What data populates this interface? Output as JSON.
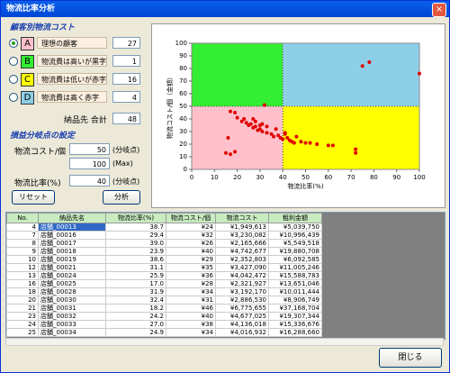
{
  "window": {
    "title": "物流比率分析",
    "close": "閉じる"
  },
  "customer_group": {
    "title": "顧客別物流コスト",
    "rows": [
      {
        "key": "A",
        "label": "理想の顧客",
        "count": 27
      },
      {
        "key": "B",
        "label": "物流費は高いが黒字",
        "count": 1
      },
      {
        "key": "C",
        "label": "物流費は低いが赤字",
        "count": 16
      },
      {
        "key": "D",
        "label": "物流費は高く赤字",
        "count": 4
      }
    ],
    "total_label": "納品先 合計",
    "total": 48
  },
  "breakeven": {
    "title": "損益分岐点の設定",
    "cost_label": "物流コスト/個",
    "cost": 50,
    "cost_note": "(分岐点)",
    "max": 100,
    "max_note": "(Max)",
    "ratio_label": "物流比率(%)",
    "ratio": 40,
    "ratio_note": "(分岐点)",
    "reset": "リセット",
    "analyze": "分析"
  },
  "chart_data": {
    "type": "scatter",
    "xlabel": "物流比率(%)",
    "ylabel": "物流コスト/個（金額）",
    "xlim": [
      0,
      100
    ],
    "ylim": [
      0,
      100
    ],
    "xticks": [
      0,
      10,
      20,
      30,
      40,
      50,
      60,
      70,
      80,
      90,
      100
    ],
    "yticks": [
      0,
      10,
      20,
      30,
      40,
      50,
      60,
      70,
      80,
      90,
      100
    ],
    "quadrant_colors": [
      "#ffc0cb",
      "#33ee33",
      "#ffff00",
      "#8ecfe8"
    ],
    "color": "#e00000",
    "x": [
      17,
      19,
      20,
      22,
      23,
      24,
      25,
      26,
      27,
      28,
      29,
      30,
      31,
      33,
      35,
      36,
      38,
      39,
      27,
      28,
      30,
      31,
      33,
      37,
      16,
      15,
      17,
      19,
      32,
      40,
      41,
      42,
      43,
      44,
      46,
      48,
      50,
      52,
      55,
      60,
      62,
      72,
      72,
      45,
      41,
      75,
      78,
      100
    ],
    "y": [
      46,
      45,
      41,
      38,
      40,
      37,
      35,
      36,
      33,
      34,
      31,
      32,
      30,
      29,
      28,
      26,
      27,
      25,
      40,
      38,
      35,
      36,
      34,
      32,
      25,
      13,
      12,
      14,
      51,
      24,
      28,
      25,
      23,
      22,
      26,
      22,
      21,
      21,
      20,
      19,
      19,
      13,
      16,
      21,
      29,
      82,
      85,
      76
    ]
  },
  "table": {
    "header": [
      "No.",
      "納品先名",
      "物流比率(%)",
      "物流コスト/個",
      "物流コスト",
      "粗利金額"
    ],
    "rows": [
      [
        "4",
        "店舗_00013",
        "38.7",
        "¥24",
        "¥1,949,613",
        "¥5,039,750"
      ],
      [
        "7",
        "店舗_00016",
        "29.4",
        "¥32",
        "¥3,230,082",
        "¥10,996,439"
      ],
      [
        "8",
        "店舗_00017",
        "39.0",
        "¥26",
        "¥2,165,666",
        "¥5,549,518"
      ],
      [
        "9",
        "店舗_00018",
        "23.9",
        "¥40",
        "¥4,742,677",
        "¥19,880,708"
      ],
      [
        "10",
        "店舗_00019",
        "38.6",
        "¥29",
        "¥2,352,803",
        "¥6,092,585"
      ],
      [
        "12",
        "店舗_00021",
        "31.1",
        "¥35",
        "¥3,427,090",
        "¥11,005,246"
      ],
      [
        "13",
        "店舗_00024",
        "25.9",
        "¥36",
        "¥4,042,472",
        "¥15,588,783"
      ],
      [
        "16",
        "店舗_00025",
        "17.0",
        "¥28",
        "¥2,321,927",
        "¥13,651,046"
      ],
      [
        "18",
        "店舗_00028",
        "31.9",
        "¥34",
        "¥3,192,170",
        "¥10,011,444"
      ],
      [
        "20",
        "店舗_00030",
        "32.4",
        "¥31",
        "¥2,886,530",
        "¥8,906,749"
      ],
      [
        "21",
        "店舗_00031",
        "18.2",
        "¥46",
        "¥6,775,655",
        "¥37,168,704"
      ],
      [
        "23",
        "店舗_00032",
        "24.2",
        "¥40",
        "¥4,677,025",
        "¥19,307,344"
      ],
      [
        "24",
        "店舗_00033",
        "27.0",
        "¥38",
        "¥4,136,018",
        "¥15,336,676"
      ],
      [
        "25",
        "店舗_00034",
        "24.9",
        "¥34",
        "¥4,016,932",
        "¥16,288,660"
      ]
    ]
  }
}
